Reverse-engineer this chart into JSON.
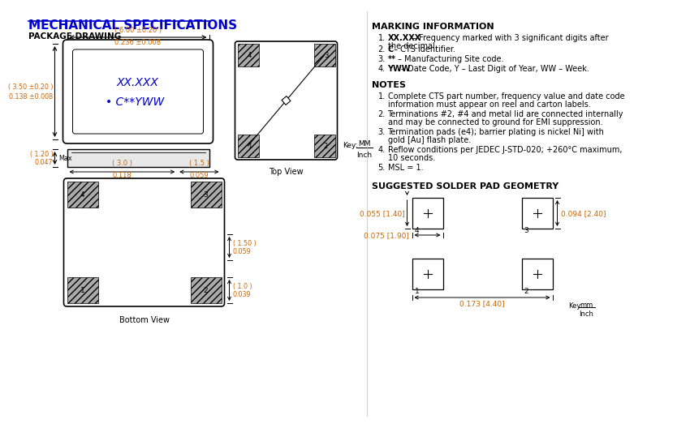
{
  "title": "MECHANICAL SPECIFICATIONS",
  "title_color": "#0000CC",
  "subtitle": "PACKAGE DRAWING",
  "bg_color": "#FFFFFF",
  "text_color": "#000000",
  "dim_color": "#CC6600",
  "line_color": "#000000",
  "hatch_color": "#999999",
  "marking_text1": "XX.XXX",
  "marking_text2": "• C**YWW",
  "marking_text_color": "#0000CC",
  "front_dim_w": "( 6.00 ±0.20 )",
  "front_dim_w2": "0.236 ±0.008",
  "front_dim_h": "( 3.50 ±0.20 )",
  "front_dim_h2": "0.138 ±0.008",
  "side_dim_h": "( 1.20 )",
  "side_dim_h2": "0.047",
  "side_dim_max": "Max",
  "bottom_dim1": "( 3.0 )",
  "bottom_dim1b": "0.118",
  "bottom_dim2": "( 1.5 )",
  "bottom_dim2b": "0.059",
  "bottom_dim3": "( 1.0 )",
  "bottom_dim3b": "0.039",
  "bottom_dim4": "( 1.50 )",
  "bottom_dim4b": "0.059",
  "topview_label": "Top View",
  "bottomview_label": "Bottom View",
  "key_label": "Key:",
  "key_mm": "MM",
  "key_inch": "Inch",
  "key_mm2": "mm",
  "key_inch2": "Inch",
  "marking_title": "MARKING INFORMATION",
  "marking_lines": [
    [
      "XX.XXX",
      " – Frequency marked with 3 significant digits after",
      "the decimal."
    ],
    [
      "C",
      " – CTS identifier."
    ],
    [
      "**",
      " – Manufacturing Site code."
    ],
    [
      "YWW",
      " – Date Code, Y – Last Digit of Year, WW – Week."
    ]
  ],
  "notes_title": "NOTES",
  "notes_lines": [
    "Complete CTS part number, frequency value and date code",
    "Terminations #2, #4 and metal lid are connected internally",
    "Termination pads (e4); barrier plating is nickel Ni] with",
    "Reflow conditions per JEDEC J-STD-020; +260°C maximum,",
    "MSL = 1."
  ],
  "notes_lines2": [
    "information must appear on reel and carton labels.",
    "and may be connected to ground for EMI suppression.",
    "gold [Au] flash plate.",
    "10 seconds.",
    ""
  ],
  "solder_title": "SUGGESTED SOLDER PAD GEOMETRY",
  "solder_dim1": "0.055 [1.40]",
  "solder_dim2": "0.075 [1.90]",
  "solder_dim3": "0.094 [2.40]",
  "solder_dim4": "0.173 [4.40]"
}
